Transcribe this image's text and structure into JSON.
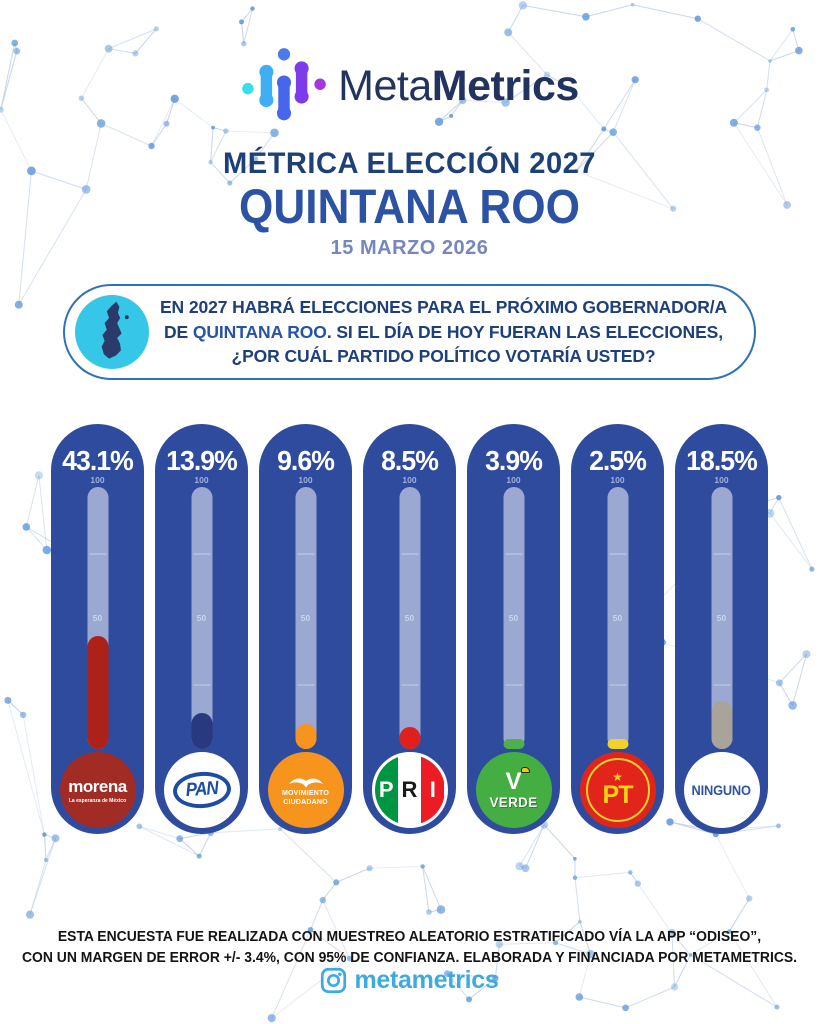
{
  "brand": {
    "logo_light": "Meta",
    "logo_bold": "Metrics"
  },
  "header": {
    "title": "MÉTRICA ELECCIÓN ",
    "title_year": "2027",
    "state": "QUINTANA ROO",
    "date": "15 MARZO 2026"
  },
  "question": {
    "part1": "EN ",
    "bold1": "2027",
    "part2": " HABRÁ ELECCIONES PARA EL PRÓXIMO GOBERNADOR/A DE ",
    "bold2": "QUINTANA ROO",
    "part3": ". SI EL DÍA DE HOY FUERAN LAS ELECCIONES, ¿POR CUÁL PARTIDO POLÍTICO VOTARÍA USTED?"
  },
  "chart": {
    "tick_top": "100",
    "tick_mid": "50",
    "parties": [
      {
        "name": "MORENA",
        "pct_label": "43.1%",
        "value": 43.1,
        "fill_color": "#AC2118",
        "logo": {
          "text": "morena",
          "tagline": "La esperanza de México"
        }
      },
      {
        "name": "PAN",
        "pct_label": "13.9%",
        "value": 13.9,
        "fill_color": "#28397F",
        "logo": {
          "text": "PAN"
        }
      },
      {
        "name": "MOVIMIENTO CIUDADANO",
        "pct_label": "9.6%",
        "value": 9.6,
        "fill_color": "#F7941E",
        "logo": {
          "line1": "MOVIMIENTO",
          "line2": "CIUDADANO"
        }
      },
      {
        "name": "PRI",
        "pct_label": "8.5%",
        "value": 8.5,
        "fill_color": "#E0201C",
        "logo": {
          "letters": [
            "P",
            "R",
            "I"
          ]
        }
      },
      {
        "name": "VERDE",
        "pct_label": "3.9%",
        "value": 3.9,
        "fill_color": "#4DB04A",
        "logo": {
          "v": "V",
          "text": "VERDE"
        }
      },
      {
        "name": "PT",
        "pct_label": "2.5%",
        "value": 2.5,
        "fill_color": "#F0D22B",
        "logo": {
          "star": "★",
          "text": "PT"
        }
      },
      {
        "name": "NINGUNO",
        "pct_label": "18.5%",
        "value": 18.5,
        "fill_color": "#A9A39A",
        "logo": {
          "text": "NINGUNO"
        }
      }
    ]
  },
  "chart_data": {
    "type": "bar",
    "title": "MÉTRICA ELECCIÓN 2027 — QUINTANA ROO",
    "subtitle": "15 MARZO 2026",
    "question": "EN 2027 HABRÁ ELECCIONES PARA EL PRÓXIMO GOBERNADOR/A DE QUINTANA ROO. SI EL DÍA DE HOY FUERAN LAS ELECCIONES, ¿POR CUÁL PARTIDO POLÍTICO VOTARÍA USTED?",
    "categories": [
      "MORENA",
      "PAN",
      "MOVIMIENTO CIUDADANO",
      "PRI",
      "VERDE",
      "PT",
      "NINGUNO"
    ],
    "values": [
      43.1,
      13.9,
      9.6,
      8.5,
      3.9,
      2.5,
      18.5
    ],
    "value_labels": [
      "43.1%",
      "13.9%",
      "9.6%",
      "8.5%",
      "3.9%",
      "2.5%",
      "18.5%"
    ],
    "bar_colors": [
      "#AC2118",
      "#28397F",
      "#F7941E",
      "#E0201C",
      "#4DB04A",
      "#F0D22B",
      "#A9A39A"
    ],
    "xlabel": "",
    "ylabel": "%",
    "ylim": [
      0,
      100
    ],
    "axis_ticks": [
      100,
      50
    ],
    "grid": true,
    "legend_position": "none"
  },
  "footer": {
    "line1": "ESTA ENCUESTA FUE REALIZADA CON MUESTREO ALEATORIO ESTRATIFICADO VÍA LA APP “ODISEO”,",
    "line2": "CON UN MARGEN DE ERROR  +/- 3.4%, CON 95% DE CONFIANZA. ELABORADA Y FINANCIADA POR METAMETRICS.",
    "instagram_handle": "metametrics"
  }
}
